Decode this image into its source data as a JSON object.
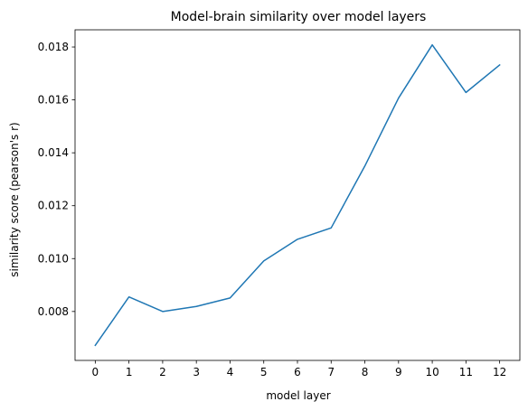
{
  "chart_data": {
    "type": "line",
    "title": "Model-brain similarity over model layers",
    "xlabel": "model layer",
    "ylabel": "similarity score (pearson's r)",
    "x": [
      0,
      1,
      2,
      3,
      4,
      5,
      6,
      7,
      8,
      9,
      10,
      11,
      12
    ],
    "series": [
      {
        "values": [
          0.00672,
          0.00855,
          0.008,
          0.00819,
          0.00851,
          0.00991,
          0.01073,
          0.01116,
          0.0135,
          0.01607,
          0.01808,
          0.01628,
          0.01732
        ],
        "color": "#1f77b4"
      }
    ],
    "xticks": [
      "0",
      "1",
      "2",
      "3",
      "4",
      "5",
      "6",
      "7",
      "8",
      "9",
      "10",
      "11",
      "12"
    ],
    "yticks": [
      0.008,
      0.01,
      0.012,
      0.014,
      0.016,
      0.018
    ],
    "ytick_labels": [
      "0.008",
      "0.010",
      "0.012",
      "0.014",
      "0.016",
      "0.018"
    ],
    "xlim": [
      -0.6,
      12.6
    ],
    "ylim": [
      0.00615,
      0.01865
    ],
    "grid": false
  }
}
